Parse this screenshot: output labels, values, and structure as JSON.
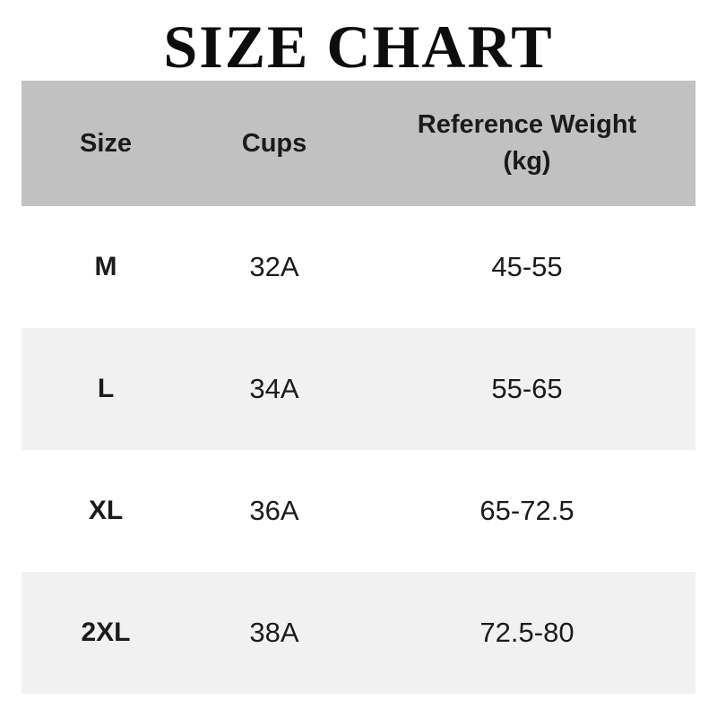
{
  "title": "SIZE CHART",
  "colors": {
    "header_bg": "#c1c1c1",
    "stripe_bg": "#f1f1f1",
    "row_bg": "#ffffff",
    "text": "#1b1b1b",
    "title_text": "#0d0d0d"
  },
  "table": {
    "columns": [
      {
        "label": "Size"
      },
      {
        "label": "Cups"
      },
      {
        "label": "Reference Weight\n(kg)"
      }
    ],
    "rows": [
      {
        "size": "M",
        "cups": "32A",
        "weight": "45-55"
      },
      {
        "size": "L",
        "cups": "34A",
        "weight": "55-65"
      },
      {
        "size": "XL",
        "cups": "36A",
        "weight": "65-72.5"
      },
      {
        "size": "2XL",
        "cups": "38A",
        "weight": "72.5-80"
      }
    ]
  },
  "chart_data": {
    "type": "table",
    "title": "SIZE CHART",
    "columns": [
      "Size",
      "Cups",
      "Reference Weight (kg)"
    ],
    "rows": [
      [
        "M",
        "32A",
        "45-55"
      ],
      [
        "L",
        "34A",
        "55-65"
      ],
      [
        "XL",
        "36A",
        "65-72.5"
      ],
      [
        "2XL",
        "38A",
        "72.5-80"
      ]
    ]
  }
}
